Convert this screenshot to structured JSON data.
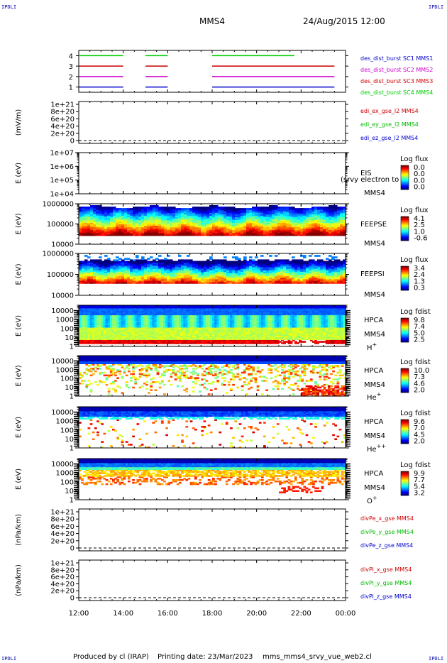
{
  "header": {
    "title": "MMS4",
    "date": "24/Aug/2015 12:00",
    "corner_label": "IPDLI"
  },
  "footer": {
    "produced_by": "Produced by cl (IRAP)",
    "printing_date": "Printing date: 23/Mar/2023",
    "script_name": "mms_mms4_srvy_vue_web2.cl"
  },
  "chart_data": [
    {
      "type": "line",
      "panel": "burst-intervals",
      "yticks": [
        "1",
        "2",
        "3",
        "4"
      ],
      "ylim": [
        0.5,
        4.5
      ],
      "xlim": [
        12,
        24
      ],
      "legend": [
        {
          "name": "des_dist_burst SC1 MMS1",
          "color": "#0000cc"
        },
        {
          "name": "des_dist_burst SC2 MMS2",
          "color": "#cc00cc"
        },
        {
          "name": "des_dist_burst SC3 MMS3",
          "color": "#cc0000"
        },
        {
          "name": "des_dist_burst SC4 MMS4",
          "color": "#00cc00"
        }
      ],
      "series": [
        {
          "name": "des_dist_burst SC1 MMS1",
          "level": 1,
          "color": "#0000cc",
          "segments": [
            [
              12.0,
              14.0
            ],
            [
              15.0,
              16.0
            ],
            [
              18.0,
              23.5
            ]
          ]
        },
        {
          "name": "des_dist_burst SC2 MMS2",
          "level": 2,
          "color": "#cc00cc",
          "segments": [
            [
              12.0,
              14.0
            ],
            [
              15.0,
              16.0
            ],
            [
              18.0,
              23.5
            ]
          ]
        },
        {
          "name": "des_dist_burst SC3 MMS3",
          "level": 3,
          "color": "#cc0000",
          "segments": [
            [
              12.0,
              14.0
            ],
            [
              15.0,
              16.0
            ],
            [
              18.0,
              23.5
            ]
          ]
        },
        {
          "name": "des_dist_burst SC4 MMS4",
          "level": 4,
          "color": "#00cc00",
          "segments": [
            [
              12.0,
              14.0
            ],
            [
              15.0,
              16.0
            ],
            [
              18.0,
              21.7
            ]
          ]
        }
      ]
    },
    {
      "type": "line",
      "panel": "edi-electric-field",
      "ylabel": "(mV/m)",
      "yticks": [
        "0",
        "2e+20",
        "4e+20",
        "6e+20",
        "8e+20",
        "1e+21"
      ],
      "ylim": [
        0,
        1e+21
      ],
      "legend": [
        {
          "name": "edi_ex_gse_l2 MMS4",
          "color": "#cc0000"
        },
        {
          "name": "edi_ey_gse_l2 MMS4",
          "color": "#00bb00"
        },
        {
          "name": "edi_ez_gse_l2 MMS4",
          "color": "#0000cc"
        }
      ]
    },
    {
      "type": "heatmap",
      "panel": "eis",
      "ylabel": "E (eV)",
      "yticks": [
        "1e+04",
        "1e+05",
        "1e+06",
        "1e+07"
      ],
      "ylim": [
        10000,
        10000000
      ],
      "right_labels": [
        "EIS",
        "MMS4"
      ],
      "overlay_text": "(srvy electron to",
      "colorbar": {
        "title": "Log flux",
        "ticks": [
          "0.0",
          "0.0",
          "0.0",
          "0.0"
        ]
      }
    },
    {
      "type": "heatmap",
      "panel": "feeps-electron",
      "ylabel": "E (eV)",
      "yticks": [
        "10000",
        "100000",
        "1000000"
      ],
      "ylim": [
        10000,
        1000000
      ],
      "right_labels": [
        "FEEPSE",
        "MMS4"
      ],
      "colorbar": {
        "title": "Log flux",
        "ticks": [
          "4.1",
          "2.5",
          "1.0",
          "-0.6"
        ]
      }
    },
    {
      "type": "heatmap",
      "panel": "feeps-ion",
      "ylabel": "E (eV)",
      "yticks": [
        "10000",
        "100000",
        "1000000"
      ],
      "ylim": [
        10000,
        1000000
      ],
      "right_labels": [
        "FEEPSI",
        "MMS4"
      ],
      "colorbar": {
        "title": "Log flux",
        "ticks": [
          "3.4",
          "2.4",
          "1.3",
          "0.3"
        ]
      }
    },
    {
      "type": "heatmap",
      "panel": "hpca-h",
      "ylabel": "E (eV)",
      "yticks": [
        "1",
        "10",
        "100",
        "1000",
        "10000"
      ],
      "ylim": [
        1,
        40000
      ],
      "right_labels": [
        "HPCA",
        "MMS4"
      ],
      "species": "H",
      "species_sup": "+",
      "colorbar": {
        "title": "Log fdist",
        "ticks": [
          "9.8",
          "7.4",
          "5.0",
          "2.5"
        ]
      }
    },
    {
      "type": "heatmap",
      "panel": "hpca-he",
      "ylabel": "E (eV)",
      "yticks": [
        "1",
        "10",
        "100",
        "1000",
        "10000"
      ],
      "ylim": [
        1,
        40000
      ],
      "right_labels": [
        "HPCA",
        "MMS4"
      ],
      "species": "He",
      "species_sup": "+",
      "colorbar": {
        "title": "Log fdist",
        "ticks": [
          "10.0",
          "7.3",
          "4.6",
          "2.0"
        ]
      }
    },
    {
      "type": "heatmap",
      "panel": "hpca-he2",
      "ylabel": "E (eV)",
      "yticks": [
        "1",
        "10",
        "100",
        "1000",
        "10000"
      ],
      "ylim": [
        1,
        40000
      ],
      "right_labels": [
        "HPCA",
        "MMS4"
      ],
      "species": "He",
      "species_sup": "++",
      "colorbar": {
        "title": "Log fdist",
        "ticks": [
          "9.6",
          "7.0",
          "4.5",
          "2.0"
        ]
      }
    },
    {
      "type": "heatmap",
      "panel": "hpca-o",
      "ylabel": "E (eV)",
      "yticks": [
        "1",
        "10",
        "100",
        "1000",
        "10000"
      ],
      "ylim": [
        1,
        40000
      ],
      "right_labels": [
        "HPCA",
        "MMS4"
      ],
      "species": "O",
      "species_sup": "+",
      "colorbar": {
        "title": "Log fdist",
        "ticks": [
          "9.9",
          "7.7",
          "5.4",
          "3.2"
        ]
      }
    },
    {
      "type": "line",
      "panel": "div-pe",
      "ylabel": "(nPa/km)",
      "yticks": [
        "0",
        "2e+20",
        "4e+20",
        "6e+20",
        "8e+20",
        "1e+21"
      ],
      "ylim": [
        0,
        1e+21
      ],
      "legend": [
        {
          "name": "divPe_x_gse MMS4",
          "color": "#cc0000"
        },
        {
          "name": "divPe_y_gse MMS4",
          "color": "#00bb00"
        },
        {
          "name": "divPe_z_gse MMS4",
          "color": "#0000cc"
        }
      ]
    },
    {
      "type": "line",
      "panel": "div-pi",
      "ylabel": "(nPa/km)",
      "yticks": [
        "0",
        "2e+20",
        "4e+20",
        "6e+20",
        "8e+20",
        "1e+21"
      ],
      "ylim": [
        0,
        1e+21
      ],
      "legend": [
        {
          "name": "divPi_x_gse MMS4",
          "color": "#cc0000"
        },
        {
          "name": "divPi_y_gse MMS4",
          "color": "#00bb00"
        },
        {
          "name": "divPi_z_gse MMS4",
          "color": "#0000cc"
        }
      ]
    }
  ],
  "x_axis": {
    "xlim": [
      12,
      24
    ],
    "tick_hours": [
      12,
      14,
      16,
      18,
      20,
      22,
      24
    ],
    "tick_labels": [
      "12:00",
      "14:00",
      "16:00",
      "18:00",
      "20:00",
      "22:00",
      "00:00"
    ]
  }
}
